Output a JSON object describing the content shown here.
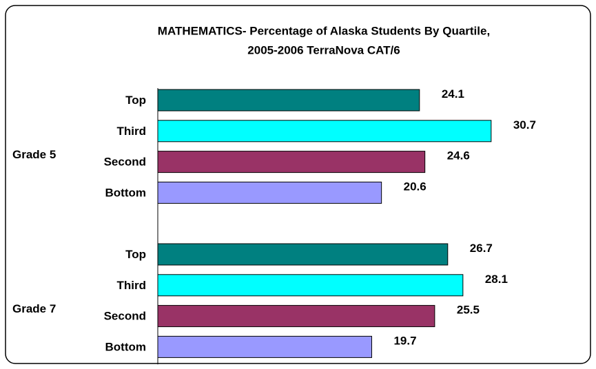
{
  "chart_data": {
    "type": "bar",
    "orientation": "horizontal",
    "title": [
      "MATHEMATICS- Percentage of Alaska Students By Quartile,",
      "2005-2006 TerraNova CAT/6"
    ],
    "categories": [
      "Grade 5",
      "Grade 7"
    ],
    "series": [
      {
        "name": "Top",
        "color": "#008080",
        "values": [
          24.1,
          26.7
        ]
      },
      {
        "name": "Third",
        "color": "#00ffff",
        "values": [
          30.7,
          28.1
        ]
      },
      {
        "name": "Second",
        "color": "#993366",
        "values": [
          24.6,
          25.5
        ]
      },
      {
        "name": "Bottom",
        "color": "#9999ff",
        "values": [
          20.6,
          19.7
        ]
      }
    ],
    "xlim": [
      0,
      35
    ],
    "grid": false
  }
}
